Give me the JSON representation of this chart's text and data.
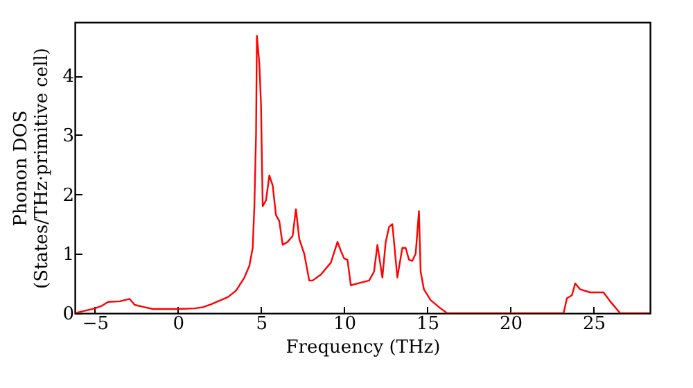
{
  "chart_data": {
    "type": "line",
    "xlabel": "Frequency (THz)",
    "ylabel": "Phonon DOS\n(States/THz·primitive cell)",
    "xlim": [
      -6.2,
      28.4
    ],
    "ylim": [
      0,
      4.9
    ],
    "xticks": [
      -5,
      0,
      5,
      10,
      15,
      20,
      25
    ],
    "yticks": [
      0,
      1,
      2,
      3,
      4
    ],
    "grid": false,
    "marker": "none",
    "line_style": "solid",
    "series": [
      {
        "color": "#ff0000",
        "x": [
          -6.2,
          -5,
          -4.6,
          -4.2,
          -3.5,
          -2.9,
          -2.6,
          -2,
          -1.5,
          0,
          1,
          1.5,
          2,
          3,
          3.5,
          4,
          4.3,
          4.5,
          4.6,
          4.7,
          4.75,
          4.9,
          5.0,
          5.1,
          5.3,
          5.5,
          5.7,
          5.9,
          6.1,
          6.3,
          6.6,
          6.9,
          7.1,
          7.3,
          7.6,
          7.9,
          8.1,
          8.6,
          9.2,
          9.6,
          9.8,
          10.0,
          10.2,
          10.4,
          11.5,
          11.8,
          12.0,
          12.3,
          12.5,
          12.7,
          12.9,
          13.2,
          13.5,
          13.7,
          13.9,
          14.1,
          14.3,
          14.5,
          14.6,
          14.8,
          15.2,
          15.8,
          16.2,
          23.2,
          23.4,
          23.7,
          23.9,
          24.2,
          24.8,
          25.6,
          26.0,
          26.6,
          28.4
        ],
        "values": [
          0.0,
          0.08,
          0.12,
          0.19,
          0.2,
          0.24,
          0.14,
          0.1,
          0.07,
          0.07,
          0.08,
          0.1,
          0.15,
          0.27,
          0.38,
          0.6,
          0.8,
          1.1,
          1.8,
          3.0,
          4.67,
          4.2,
          3.5,
          1.8,
          1.9,
          2.32,
          2.15,
          1.65,
          1.55,
          1.15,
          1.2,
          1.3,
          1.75,
          1.25,
          1.0,
          0.55,
          0.55,
          0.65,
          0.85,
          1.2,
          1.05,
          0.92,
          0.9,
          0.47,
          0.55,
          0.7,
          1.15,
          0.6,
          1.2,
          1.45,
          1.5,
          0.6,
          1.1,
          1.1,
          0.9,
          0.88,
          1.0,
          1.72,
          0.7,
          0.4,
          0.22,
          0.08,
          0.0,
          0.0,
          0.25,
          0.3,
          0.5,
          0.4,
          0.35,
          0.35,
          0.2,
          0.0,
          0.0
        ]
      }
    ]
  }
}
